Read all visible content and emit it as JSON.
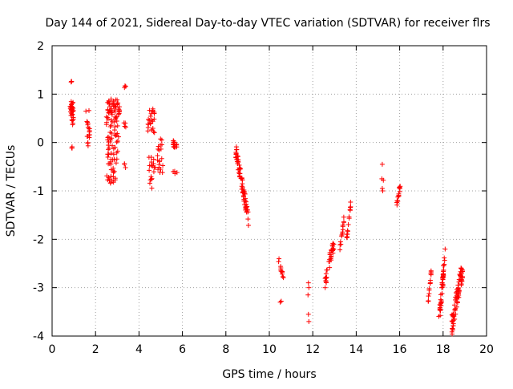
{
  "chart_data": {
    "type": "scatter",
    "title": "Day 144 of 2021, Sidereal Day-to-day VTEC variation (SDTVAR) for receiver flrs",
    "xlabel": "GPS time / hours",
    "ylabel": "SDTVAR / TECUs",
    "xlim": [
      0,
      20
    ],
    "ylim": [
      -4,
      2
    ],
    "xticks": [
      "0",
      "2",
      "4",
      "6",
      "8",
      "10",
      "12",
      "14",
      "16",
      "18",
      "20"
    ],
    "yticks": [
      "-4",
      "-3",
      "-2",
      "-1",
      "0",
      "1",
      "2"
    ],
    "grid": true,
    "marker": "+",
    "color": "#ff0000",
    "clusters": [
      {
        "x0": 0.82,
        "x1": 0.98,
        "y0": 0.35,
        "y1": 0.85,
        "n": 30
      },
      {
        "x0": 0.9,
        "x1": 0.95,
        "y0": -0.12,
        "y1": -0.08,
        "n": 3
      },
      {
        "x0": 0.85,
        "x1": 0.9,
        "y0": 1.24,
        "y1": 1.28,
        "n": 3
      },
      {
        "x0": 1.55,
        "x1": 1.75,
        "y0": 0.1,
        "y1": 0.7,
        "n": 16
      },
      {
        "x0": 1.6,
        "x1": 1.75,
        "y0": -0.1,
        "y1": 0.0,
        "n": 3
      },
      {
        "x0": 2.5,
        "x1": 3.1,
        "y0": 0.0,
        "y1": 0.9,
        "n": 75
      },
      {
        "x0": 2.5,
        "x1": 2.95,
        "y0": -0.85,
        "y1": -0.5,
        "n": 18
      },
      {
        "x0": 2.55,
        "x1": 3.05,
        "y0": -0.45,
        "y1": -0.05,
        "n": 22
      },
      {
        "x0": 3.3,
        "x1": 3.4,
        "y0": 1.13,
        "y1": 1.18,
        "n": 3
      },
      {
        "x0": 3.3,
        "x1": 3.4,
        "y0": 0.2,
        "y1": 0.42,
        "n": 4
      },
      {
        "x0": 3.3,
        "x1": 3.4,
        "y0": -0.55,
        "y1": -0.4,
        "n": 3
      },
      {
        "x0": 4.4,
        "x1": 4.75,
        "y0": 0.2,
        "y1": 0.7,
        "n": 24
      },
      {
        "x0": 4.45,
        "x1": 4.75,
        "y0": -0.95,
        "y1": -0.3,
        "n": 18
      },
      {
        "x0": 4.85,
        "x1": 5.1,
        "y0": -0.65,
        "y1": 0.1,
        "n": 20
      },
      {
        "x0": 5.55,
        "x1": 5.75,
        "y0": -0.1,
        "y1": 0.05,
        "n": 14
      },
      {
        "x0": 5.55,
        "x1": 5.75,
        "y0": -0.65,
        "y1": -0.55,
        "n": 4
      }
    ],
    "trends": [
      {
        "x0": 8.45,
        "y0": -0.15,
        "x1": 9.05,
        "y1": -1.6,
        "n": 70,
        "spread": 0.3
      },
      {
        "x0": 10.4,
        "y0": -2.4,
        "x1": 10.65,
        "y1": -2.75,
        "n": 12,
        "spread": 0.15
      },
      {
        "x0": 12.55,
        "y0": -2.9,
        "x1": 13.0,
        "y1": -2.0,
        "n": 35,
        "spread": 0.3
      },
      {
        "x0": 13.25,
        "y0": -2.2,
        "x1": 13.45,
        "y1": -1.5,
        "n": 14,
        "spread": 0.2
      },
      {
        "x0": 13.55,
        "y0": -2.05,
        "x1": 13.75,
        "y1": -1.25,
        "n": 16,
        "spread": 0.15
      },
      {
        "x0": 15.85,
        "y0": -1.3,
        "x1": 16.05,
        "y1": -0.85,
        "n": 14,
        "spread": 0.15
      },
      {
        "x0": 17.3,
        "y0": -3.35,
        "x1": 17.45,
        "y1": -2.7,
        "n": 14,
        "spread": 0.15
      },
      {
        "x0": 17.8,
        "y0": -3.75,
        "x1": 18.1,
        "y1": -2.3,
        "n": 45,
        "spread": 0.4
      },
      {
        "x0": 18.4,
        "y0": -3.8,
        "x1": 18.9,
        "y1": -2.6,
        "n": 75,
        "spread": 0.45
      }
    ],
    "points": [
      [
        10.5,
        -3.3
      ],
      [
        10.55,
        -3.28
      ],
      [
        11.8,
        -2.9
      ],
      [
        11.82,
        -3.0
      ],
      [
        11.78,
        -3.15
      ],
      [
        11.8,
        -3.55
      ],
      [
        11.82,
        -3.7
      ],
      [
        15.2,
        -0.45
      ],
      [
        15.18,
        -0.75
      ],
      [
        15.25,
        -0.78
      ],
      [
        15.2,
        -0.95
      ],
      [
        15.22,
        -1.0
      ]
    ]
  }
}
